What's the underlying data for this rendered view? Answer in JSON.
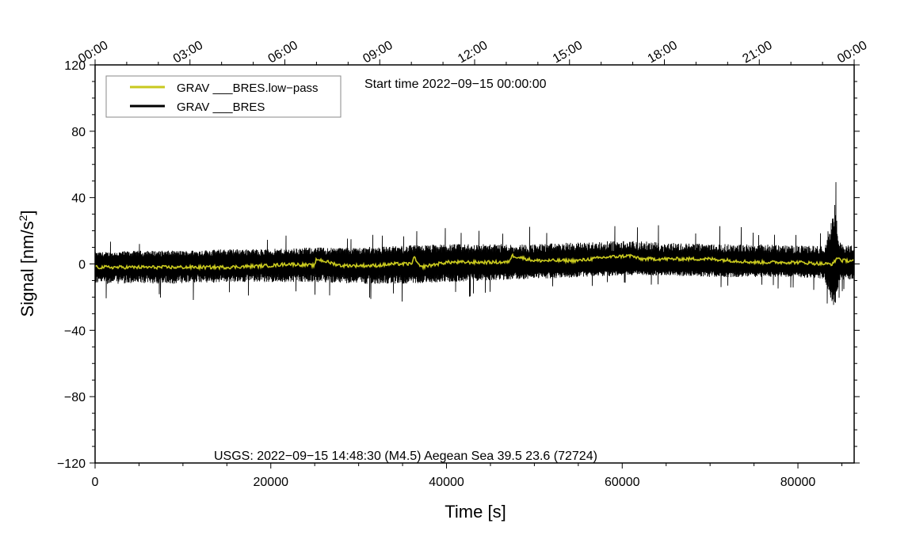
{
  "chart_data": {
    "type": "line",
    "xlabel": "Time [s]",
    "ylabel_main": "Signal [nm/s",
    "ylabel_sup": "2",
    "ylabel_close": "]",
    "xlim": [
      0,
      86400
    ],
    "ylim": [
      -120,
      120
    ],
    "x_ticks": [
      0,
      20000,
      40000,
      60000,
      80000
    ],
    "x_tick_labels": [
      "0",
      "20000",
      "40000",
      "60000",
      "80000"
    ],
    "y_ticks": [
      120,
      80,
      40,
      0,
      -40,
      -80,
      -120
    ],
    "y_tick_labels": [
      "120",
      "80",
      "40",
      "0",
      "−40",
      "−80",
      "−120"
    ],
    "top_axis_ticks_seconds": [
      0,
      10800,
      21600,
      32400,
      43200,
      54000,
      64800,
      75600,
      86400
    ],
    "top_axis_labels": [
      "00:00",
      "03:00",
      "06:00",
      "09:00",
      "12:00",
      "15:00",
      "18:00",
      "21:00",
      "00:00"
    ],
    "start_time_text": "Start time 2022−09−15 00:00:00",
    "event_text": "USGS: 2022−09−15 14:48:30 (M4.5) Aegean Sea 39.5 23.6 (72724)",
    "legend_position": "top-left",
    "grid": false,
    "series": [
      {
        "name": "GRAV ___BRES.low−pass",
        "color": "#c8c81e",
        "x": [
          0,
          5000,
          10000,
          15000,
          20000,
          22000,
          25000,
          25200,
          28000,
          32000,
          34000,
          36000,
          36300,
          37000,
          40000,
          44000,
          47000,
          47500,
          50000,
          55000,
          58000,
          61000,
          62000,
          65000,
          70000,
          75000,
          80000,
          83000,
          84000,
          84500,
          85000,
          86400
        ],
        "y": [
          -2,
          -2,
          -2,
          -2,
          -1,
          0,
          -1,
          3,
          -1,
          -1,
          0,
          0,
          4,
          -2,
          1,
          1,
          1,
          5,
          2,
          2,
          4,
          5,
          3,
          3,
          3,
          1,
          1,
          0,
          0,
          4,
          2,
          2
        ]
      },
      {
        "name": "GRAV ___BRES",
        "color": "#000000",
        "x": [
          0,
          5000,
          10000,
          15000,
          20000,
          25000,
          30000,
          35000,
          40000,
          45000,
          50000,
          55000,
          60000,
          65000,
          70000,
          75000,
          80000,
          83000,
          84200,
          84400,
          84600,
          85000,
          86400
        ],
        "y_upper": [
          7,
          8,
          8,
          9,
          9,
          10,
          10,
          11,
          12,
          12,
          12,
          13,
          14,
          13,
          12,
          12,
          11,
          11,
          36,
          28,
          14,
          12,
          11
        ],
        "y_lower": [
          -12,
          -12,
          -12,
          -11,
          -11,
          -11,
          -12,
          -12,
          -11,
          -10,
          -9,
          -8,
          -7,
          -7,
          -8,
          -8,
          -8,
          -9,
          -28,
          -22,
          -12,
          -10,
          -9
        ]
      }
    ]
  }
}
